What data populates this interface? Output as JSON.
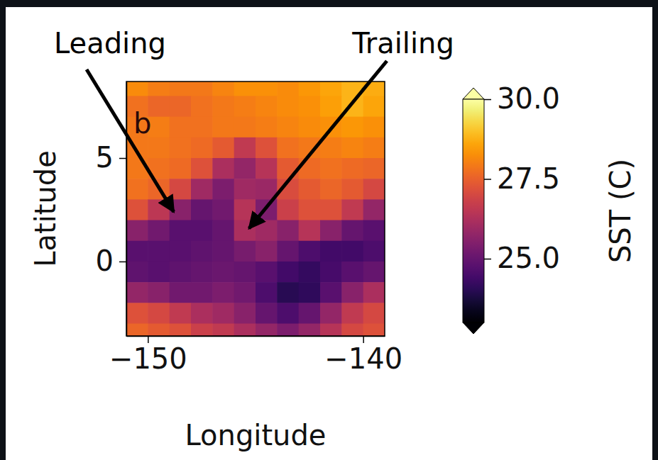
{
  "chart_data": {
    "type": "heatmap",
    "panel": "b",
    "x_label": "Longitude",
    "y_label": "Latitude",
    "x": [
      -150.5,
      -149.5,
      -148.5,
      -147.5,
      -146.5,
      -145.5,
      -144.5,
      -143.5,
      -142.5,
      -141.5,
      -140.5,
      -139.5
    ],
    "y": [
      8.5,
      7.5,
      6.5,
      5.5,
      4.5,
      3.5,
      2.5,
      1.5,
      0.5,
      -0.5,
      -1.5,
      -2.5,
      -3.5
    ],
    "z": [
      [
        28.2,
        28.0,
        27.9,
        27.9,
        28.1,
        28.3,
        28.3,
        28.2,
        28.4,
        28.6,
        28.8,
        28.7
      ],
      [
        27.8,
        27.6,
        27.6,
        27.8,
        27.9,
        28.0,
        28.1,
        28.2,
        28.3,
        28.5,
        28.8,
        28.6
      ],
      [
        27.9,
        28.0,
        27.8,
        27.8,
        27.9,
        27.9,
        28.0,
        28.1,
        28.2,
        28.3,
        28.4,
        28.3
      ],
      [
        27.9,
        27.9,
        27.8,
        27.7,
        27.4,
        26.6,
        27.2,
        27.8,
        27.9,
        28.0,
        28.1,
        28.0
      ],
      [
        27.9,
        27.8,
        27.7,
        27.2,
        26.2,
        25.8,
        26.4,
        27.4,
        27.7,
        27.8,
        27.7,
        27.6
      ],
      [
        27.8,
        27.6,
        27.0,
        26.0,
        25.4,
        26.0,
        25.9,
        27.1,
        27.4,
        27.6,
        27.4,
        27.0
      ],
      [
        27.2,
        26.5,
        25.6,
        25.0,
        25.2,
        26.4,
        25.4,
        26.8,
        27.2,
        27.2,
        26.6,
        25.8
      ],
      [
        25.6,
        25.2,
        24.8,
        24.8,
        25.0,
        26.2,
        26.0,
        25.6,
        26.4,
        25.6,
        25.0,
        24.8
      ],
      [
        24.8,
        24.8,
        24.8,
        24.9,
        25.0,
        25.3,
        25.6,
        25.0,
        24.6,
        24.4,
        24.4,
        24.6
      ],
      [
        24.9,
        24.8,
        24.9,
        25.0,
        25.1,
        25.0,
        24.8,
        24.4,
        24.2,
        24.5,
        24.8,
        25.0
      ],
      [
        25.8,
        25.6,
        25.2,
        25.2,
        25.4,
        25.2,
        24.6,
        24.0,
        24.1,
        24.8,
        25.6,
        26.2
      ],
      [
        27.2,
        27.0,
        26.6,
        26.2,
        26.0,
        25.6,
        25.0,
        24.6,
        25.0,
        25.8,
        26.6,
        27.0
      ],
      [
        27.6,
        27.4,
        27.2,
        26.8,
        26.6,
        26.2,
        25.8,
        25.4,
        25.8,
        26.4,
        27.0,
        27.2
      ]
    ],
    "xlim": [
      -151,
      -139
    ],
    "ylim": [
      -3.6,
      8.7
    ],
    "xticks": [
      {
        "value": -150,
        "label": "−150"
      },
      {
        "value": -140,
        "label": "−140"
      }
    ],
    "yticks": [
      0,
      5
    ],
    "colorbar": {
      "label": "SST (C)",
      "range": [
        23,
        30
      ],
      "ticks": [
        {
          "value": 25,
          "label": "25.0"
        },
        {
          "value": 27.5,
          "label": "27.5"
        },
        {
          "value": 30,
          "label": "30.0"
        }
      ]
    },
    "annotations": [
      {
        "text": "Leading",
        "x": -148.8,
        "y": 2.4
      },
      {
        "text": "Trailing",
        "x": -145.3,
        "y": 1.6
      }
    ]
  }
}
